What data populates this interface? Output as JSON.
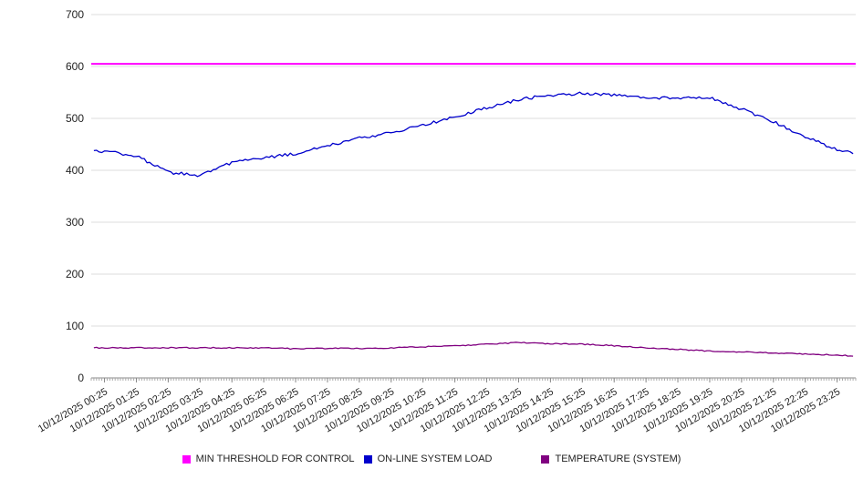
{
  "chart_data": {
    "type": "line",
    "title": "",
    "xlabel": "",
    "ylabel": "",
    "ylim": [
      0,
      700
    ],
    "y_ticks": [
      0,
      100,
      200,
      300,
      400,
      500,
      600,
      700
    ],
    "grid": "horizontal",
    "legend_position": "bottom",
    "x_domain_minutes": [
      0,
      1440
    ],
    "x_tick_labels": [
      "10/12/2025 00:25",
      "10/12/2025 01:25",
      "10/12/2025 02:25",
      "10/12/2025 03:25",
      "10/12/2025 04:25",
      "10/12/2025 05:25",
      "10/12/2025 06:25",
      "10/12/2025 07:25",
      "10/12/2025 08:25",
      "10/12/2025 09:25",
      "10/12/2025 10:25",
      "10/12/2025 11:25",
      "10/12/2025 12:25",
      "10/12/2025 13:25",
      "10/12/2025 14:25",
      "10/12/2025 15:25",
      "10/12/2025 16:25",
      "10/12/2025 17:25",
      "10/12/2025 18:25",
      "10/12/2025 19:25",
      "10/12/2025 20:25",
      "10/12/2025 21:25",
      "10/12/2025 22:25",
      "10/12/2025 23:25"
    ],
    "series": [
      {
        "name": "MIN THRESHOLD FOR CONTROL",
        "color": "#ff00ff",
        "style": "constant",
        "value": 605
      },
      {
        "name": "ON-LINE SYSTEM LOAD",
        "color": "#0000cc",
        "style": "line",
        "x_minutes": [
          5,
          25,
          85,
          145,
          205,
          265,
          325,
          385,
          445,
          505,
          565,
          625,
          685,
          745,
          805,
          865,
          925,
          985,
          1045,
          1105,
          1165,
          1225,
          1285,
          1345,
          1405,
          1435
        ],
        "values": [
          437,
          437,
          428,
          396,
          390,
          415,
          424,
          432,
          447,
          462,
          472,
          487,
          503,
          520,
          536,
          545,
          548,
          545,
          540,
          539,
          540,
          518,
          494,
          464,
          440,
          432
        ]
      },
      {
        "name": "TEMPERATURE (SYSTEM)",
        "color": "#800080",
        "style": "line",
        "x_minutes": [
          5,
          25,
          85,
          145,
          205,
          265,
          325,
          385,
          445,
          505,
          565,
          625,
          685,
          745,
          805,
          865,
          925,
          985,
          1045,
          1105,
          1165,
          1225,
          1285,
          1345,
          1405,
          1435
        ],
        "values": [
          58,
          58,
          58,
          58,
          58,
          58,
          58,
          56,
          57,
          57,
          58,
          60,
          62,
          65,
          68,
          66,
          65,
          62,
          58,
          55,
          52,
          50,
          48,
          46,
          44,
          42
        ]
      }
    ]
  }
}
